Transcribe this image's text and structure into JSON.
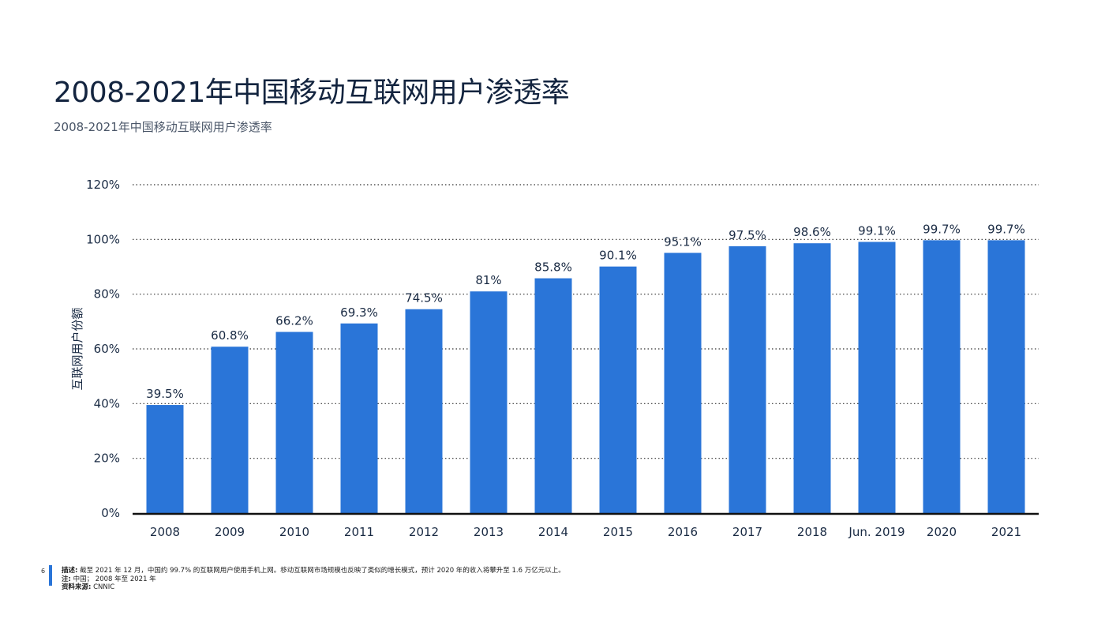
{
  "page": {
    "title": "2008-2021年中国移动互联网用户渗透率",
    "subtitle": "2008-2021年中国移动互联网用户渗透率",
    "page_number": "6",
    "footer": {
      "desc_label": "描述:",
      "desc_text": "截至 2021 年 12 月，中国约 99.7% 的互联网用户使用手机上网。移动互联网市场规模也反映了类似的增长模式，预计 2020 年的收入将攀升至 1.6 万亿元以上。",
      "note_label": "注:",
      "note_text": "中国； 2008 年至 2021 年",
      "source_label": "资料来源:",
      "source_text": "CNNIC"
    }
  },
  "colors": {
    "bar": "#2a75d8",
    "axis": "#111111",
    "grid": "#333333",
    "text": "#1a2b44"
  },
  "chart_data": {
    "type": "bar",
    "title": "",
    "ylabel": "互联网用户份额",
    "xlabel": "",
    "ylim": [
      0,
      120
    ],
    "yticks": [
      "0%",
      "20%",
      "40%",
      "60%",
      "80%",
      "100%",
      "120%"
    ],
    "grid": "dotted horizontal",
    "categories": [
      "2008",
      "2009",
      "2010",
      "2011",
      "2012",
      "2013",
      "2014",
      "2015",
      "2016",
      "2017",
      "2018",
      "Jun. 2019",
      "2020",
      "2021"
    ],
    "values": [
      39.5,
      60.8,
      66.2,
      69.3,
      74.5,
      81,
      85.8,
      90.1,
      95.1,
      97.5,
      98.6,
      99.1,
      99.7,
      99.7
    ],
    "labels": [
      "39.5%",
      "60.8%",
      "66.2%",
      "69.3%",
      "74.5%",
      "81%",
      "85.8%",
      "90.1%",
      "95.1%",
      "97.5%",
      "98.6%",
      "99.1%",
      "99.7%",
      "99.7%"
    ]
  }
}
